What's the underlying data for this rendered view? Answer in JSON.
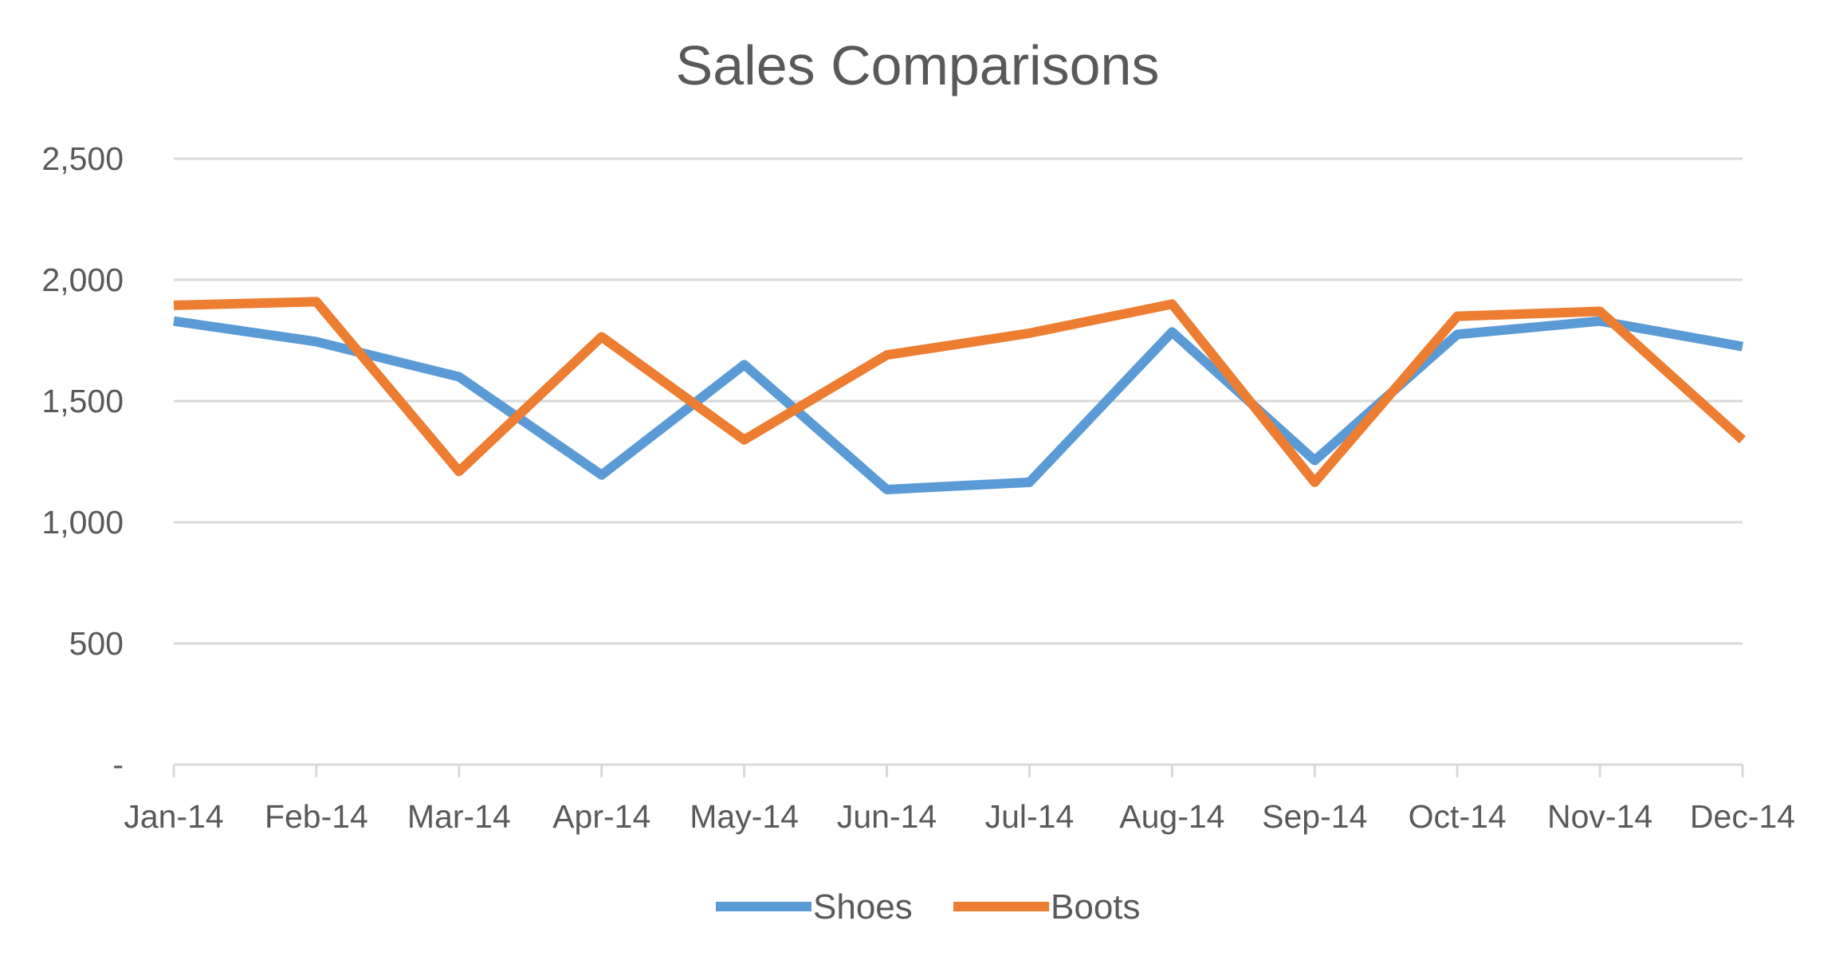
{
  "chart_data": {
    "type": "line",
    "title": "Sales Comparisons",
    "xlabel": "",
    "ylabel": "",
    "categories": [
      "Jan-14",
      "Feb-14",
      "Mar-14",
      "Apr-14",
      "May-14",
      "Jun-14",
      "Jul-14",
      "Aug-14",
      "Sep-14",
      "Oct-14",
      "Nov-14",
      "Dec-14"
    ],
    "yticks": [
      {
        "value": 0,
        "label": "-"
      },
      {
        "value": 500,
        "label": "500"
      },
      {
        "value": 1000,
        "label": "1,000"
      },
      {
        "value": 1500,
        "label": "1,500"
      },
      {
        "value": 2000,
        "label": "2,000"
      },
      {
        "value": 2500,
        "label": "2,500"
      }
    ],
    "ylim": [
      0,
      2500
    ],
    "grid": true,
    "legend_position": "bottom",
    "series": [
      {
        "name": "Shoes",
        "color": "#5B9BD5",
        "values": [
          1830,
          1745,
          1600,
          1195,
          1650,
          1135,
          1165,
          1785,
          1255,
          1775,
          1830,
          1725
        ]
      },
      {
        "name": "Boots",
        "color": "#ED7D31",
        "values": [
          1895,
          1910,
          1210,
          1765,
          1340,
          1690,
          1780,
          1900,
          1165,
          1850,
          1870,
          1340
        ]
      }
    ]
  }
}
